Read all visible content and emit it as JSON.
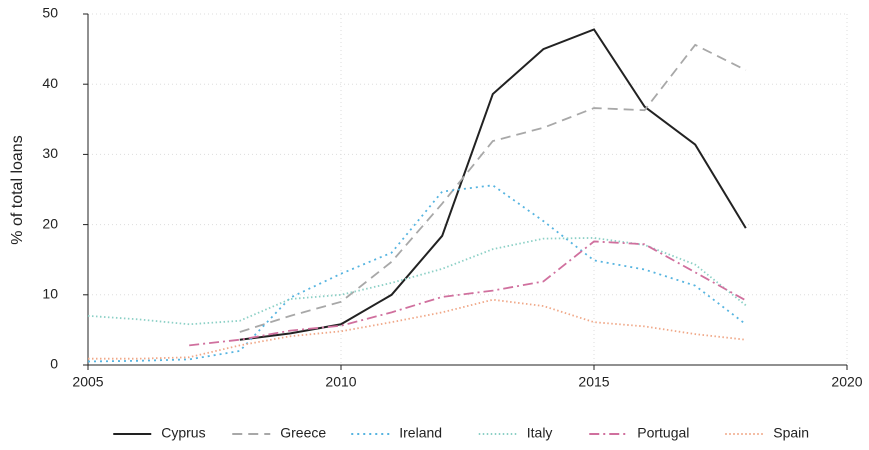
{
  "chart_data": {
    "type": "line",
    "ylabel": "% of total loans",
    "x": [
      2005,
      2006,
      2007,
      2008,
      2009,
      2010,
      2011,
      2012,
      2013,
      2014,
      2015,
      2016,
      2017,
      2018
    ],
    "series": [
      {
        "name": "Cyprus",
        "color": "#222222",
        "dash": "solid",
        "values": [
          null,
          null,
          null,
          3.6,
          4.5,
          5.8,
          10,
          18.4,
          38.6,
          45,
          47.8,
          36.8,
          31.4,
          19.5
        ]
      },
      {
        "name": "Greece",
        "color": "#a8a8a8",
        "dash": "dashed",
        "values": [
          null,
          null,
          null,
          4.7,
          7,
          9,
          14.7,
          23,
          31.9,
          33.8,
          36.6,
          36.3,
          45.6,
          42
        ]
      },
      {
        "name": "Ireland",
        "color": "#56b4e0",
        "dash": "dotted",
        "values": [
          0.5,
          0.6,
          0.8,
          2,
          9.6,
          13,
          16,
          24.7,
          25.6,
          20.5,
          14.9,
          13.6,
          11.3,
          5.8
        ]
      },
      {
        "name": "Italy",
        "color": "#8cd0c6",
        "dash": "finedotted",
        "values": [
          7,
          6.5,
          5.8,
          6.3,
          9.4,
          10,
          11.7,
          13.7,
          16.5,
          18,
          18.1,
          17.1,
          14.3,
          8.5
        ]
      },
      {
        "name": "Portugal",
        "color": "#d0709e",
        "dash": "dashdot",
        "values": [
          null,
          null,
          2.8,
          3.6,
          4.9,
          5.6,
          7.5,
          9.7,
          10.6,
          11.9,
          17.6,
          17.2,
          13.2,
          9.2
        ]
      },
      {
        "name": "Spain",
        "color": "#f0a888",
        "dash": "finedotted",
        "values": [
          0.9,
          0.9,
          1.1,
          2.8,
          4.1,
          4.8,
          6.1,
          7.5,
          9.3,
          8.4,
          6.1,
          5.5,
          4.4,
          3.6
        ]
      }
    ],
    "xlim": [
      2005,
      2020
    ],
    "xticks": [
      2005,
      2010,
      2015,
      2020
    ],
    "ylim": [
      0,
      50
    ],
    "yticks": [
      0,
      10,
      20,
      30,
      40,
      50
    ],
    "grid": true,
    "legend": "bottom"
  }
}
